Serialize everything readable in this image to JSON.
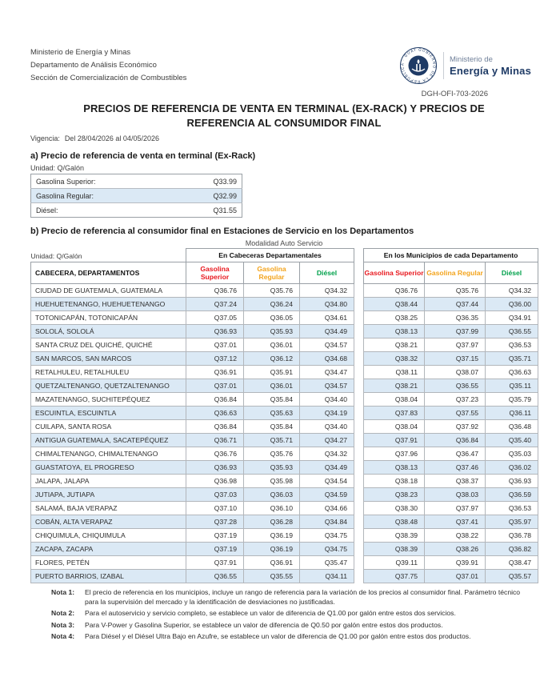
{
  "colors": {
    "navy": "#1f3b66",
    "superior_red": "#e8191f",
    "regular_orange": "#f3a41d",
    "diesel_green": "#00a14b",
    "zebra_blue": "#dbe9f5"
  },
  "header": {
    "org_lines": [
      "Ministerio de Energía y Minas",
      "Departamento de Análisis Económico",
      "Sección de Comercialización de Combustibles"
    ],
    "logo": {
      "seal_ring_text": "GOBIERNO DE LA REPÚBLICA · GUATEMALA ·",
      "line1": "Ministerio de",
      "line2": "Energía y Minas"
    },
    "doc_ref": "DGH-OFI-703-2026",
    "title": "PRECIOS DE REFERENCIA DE VENTA EN TERMINAL (EX-RACK) Y PRECIOS DE REFERENCIA AL CONSUMIDOR FINAL",
    "validity_label": "Vigencia:",
    "validity_value": "Del 28/04/2026 al 04/05/2026"
  },
  "section_a": {
    "heading": "a) Precio de referencia de venta en terminal (Ex-Rack)",
    "unit_label": "Unidad: Q/Galón",
    "rows": [
      {
        "label": "Gasolina Superior:",
        "value": "Q33.99"
      },
      {
        "label": "Gasolina Regular:",
        "value": "Q32.99"
      },
      {
        "label": "Diésel:",
        "value": "Q31.55"
      }
    ]
  },
  "section_b": {
    "heading": "b) Precio de referencia al consumidor final en Estaciones de Servicio en los Departamentos",
    "modality": "Modalidad Auto Servicio",
    "unit_label": "Unidad: Q/Galón",
    "row_header": "CABECERA, DEPARTAMENTOS",
    "group1": "En Cabeceras Departamentales",
    "group2": "En los Municipios de cada Departamento",
    "col_headers": [
      "Gasolina Superior",
      "Gasolina Regular",
      "Diésel"
    ],
    "rows": [
      {
        "name": "CIUDAD DE GUATEMALA, GUATEMALA",
        "cab": [
          "Q36.76",
          "Q35.76",
          "Q34.32"
        ],
        "mun": [
          "Q36.76",
          "Q35.76",
          "Q34.32"
        ]
      },
      {
        "name": "HUEHUETENANGO, HUEHUETENANGO",
        "cab": [
          "Q37.24",
          "Q36.24",
          "Q34.80"
        ],
        "mun": [
          "Q38.44",
          "Q37.44",
          "Q36.00"
        ]
      },
      {
        "name": "TOTONICAPÁN, TOTONICAPÁN",
        "cab": [
          "Q37.05",
          "Q36.05",
          "Q34.61"
        ],
        "mun": [
          "Q38.25",
          "Q36.35",
          "Q34.91"
        ]
      },
      {
        "name": "SOLOLÁ, SOLOLÁ",
        "cab": [
          "Q36.93",
          "Q35.93",
          "Q34.49"
        ],
        "mun": [
          "Q38.13",
          "Q37.99",
          "Q36.55"
        ]
      },
      {
        "name": "SANTA CRUZ DEL QUICHÉ, QUICHÉ",
        "cab": [
          "Q37.01",
          "Q36.01",
          "Q34.57"
        ],
        "mun": [
          "Q38.21",
          "Q37.97",
          "Q36.53"
        ]
      },
      {
        "name": "SAN MARCOS, SAN MARCOS",
        "cab": [
          "Q37.12",
          "Q36.12",
          "Q34.68"
        ],
        "mun": [
          "Q38.32",
          "Q37.15",
          "Q35.71"
        ]
      },
      {
        "name": "RETALHULEU, RETALHULEU",
        "cab": [
          "Q36.91",
          "Q35.91",
          "Q34.47"
        ],
        "mun": [
          "Q38.11",
          "Q38.07",
          "Q36.63"
        ]
      },
      {
        "name": "QUETZALTENANGO, QUETZALTENANGO",
        "cab": [
          "Q37.01",
          "Q36.01",
          "Q34.57"
        ],
        "mun": [
          "Q38.21",
          "Q36.55",
          "Q35.11"
        ]
      },
      {
        "name": "MAZATENANGO, SUCHITEPÉQUEZ",
        "cab": [
          "Q36.84",
          "Q35.84",
          "Q34.40"
        ],
        "mun": [
          "Q38.04",
          "Q37.23",
          "Q35.79"
        ]
      },
      {
        "name": "ESCUINTLA, ESCUINTLA",
        "cab": [
          "Q36.63",
          "Q35.63",
          "Q34.19"
        ],
        "mun": [
          "Q37.83",
          "Q37.55",
          "Q36.11"
        ]
      },
      {
        "name": "CUILAPA, SANTA ROSA",
        "cab": [
          "Q36.84",
          "Q35.84",
          "Q34.40"
        ],
        "mun": [
          "Q38.04",
          "Q37.92",
          "Q36.48"
        ]
      },
      {
        "name": "ANTIGUA GUATEMALA, SACATEPÉQUEZ",
        "cab": [
          "Q36.71",
          "Q35.71",
          "Q34.27"
        ],
        "mun": [
          "Q37.91",
          "Q36.84",
          "Q35.40"
        ]
      },
      {
        "name": "CHIMALTENANGO, CHIMALTENANGO",
        "cab": [
          "Q36.76",
          "Q35.76",
          "Q34.32"
        ],
        "mun": [
          "Q37.96",
          "Q36.47",
          "Q35.03"
        ]
      },
      {
        "name": "GUASTATOYA, EL PROGRESO",
        "cab": [
          "Q36.93",
          "Q35.93",
          "Q34.49"
        ],
        "mun": [
          "Q38.13",
          "Q37.46",
          "Q36.02"
        ]
      },
      {
        "name": "JALAPA, JALAPA",
        "cab": [
          "Q36.98",
          "Q35.98",
          "Q34.54"
        ],
        "mun": [
          "Q38.18",
          "Q38.37",
          "Q36.93"
        ]
      },
      {
        "name": "JUTIAPA, JUTIAPA",
        "cab": [
          "Q37.03",
          "Q36.03",
          "Q34.59"
        ],
        "mun": [
          "Q38.23",
          "Q38.03",
          "Q36.59"
        ]
      },
      {
        "name": "SALAMÁ, BAJA VERAPAZ",
        "cab": [
          "Q37.10",
          "Q36.10",
          "Q34.66"
        ],
        "mun": [
          "Q38.30",
          "Q37.97",
          "Q36.53"
        ]
      },
      {
        "name": "COBÁN, ALTA VERAPAZ",
        "cab": [
          "Q37.28",
          "Q36.28",
          "Q34.84"
        ],
        "mun": [
          "Q38.48",
          "Q37.41",
          "Q35.97"
        ]
      },
      {
        "name": "CHIQUIMULA, CHIQUIMULA",
        "cab": [
          "Q37.19",
          "Q36.19",
          "Q34.75"
        ],
        "mun": [
          "Q38.39",
          "Q38.22",
          "Q36.78"
        ]
      },
      {
        "name": "ZACAPA, ZACAPA",
        "cab": [
          "Q37.19",
          "Q36.19",
          "Q34.75"
        ],
        "mun": [
          "Q38.39",
          "Q38.26",
          "Q36.82"
        ]
      },
      {
        "name": "FLORES, PETÉN",
        "cab": [
          "Q37.91",
          "Q36.91",
          "Q35.47"
        ],
        "mun": [
          "Q39.11",
          "Q39.91",
          "Q38.47"
        ]
      },
      {
        "name": "PUERTO BARRIOS, IZABAL",
        "cab": [
          "Q36.55",
          "Q35.55",
          "Q34.11"
        ],
        "mun": [
          "Q37.75",
          "Q37.01",
          "Q35.57"
        ]
      }
    ]
  },
  "notes": [
    {
      "label": "Nota 1:",
      "text": "El precio de referencia en los municipios, incluye un rango de referencia para la variación de los precios al consumidor final. Parámetro técnico para la supervisión del mercado y la identificación de desviaciones no justificadas."
    },
    {
      "label": "Nota 2:",
      "text": "Para el autoservicio y servicio completo, se establece un valor de diferencia de Q1.00 por galón entre estos dos servicios."
    },
    {
      "label": "Nota 3:",
      "text": "Para V-Power y Gasolina Superior, se establece un valor de diferencia de Q0.50 por galón entre estos dos productos."
    },
    {
      "label": "Nota 4:",
      "text": "Para Diésel y el Diésel Ultra Bajo en Azufre, se establece un valor de diferencia de Q1.00 por galón entre estos dos productos."
    }
  ]
}
